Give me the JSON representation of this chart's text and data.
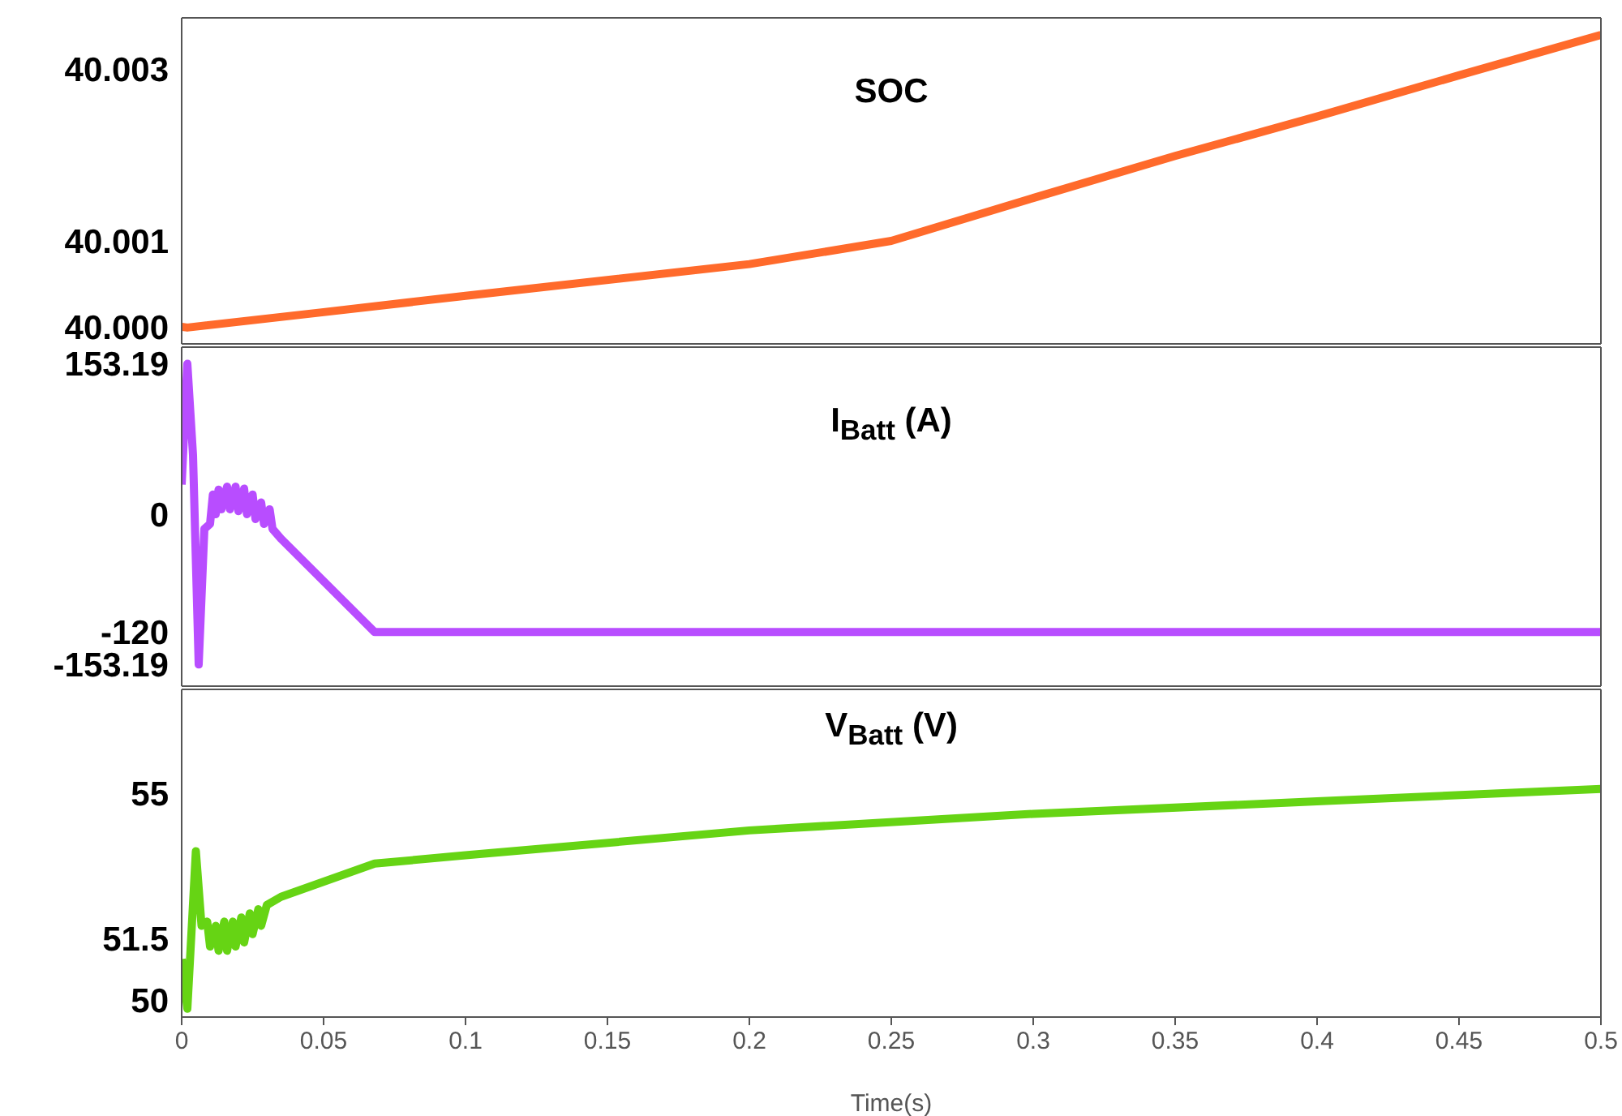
{
  "chart_data": [
    {
      "type": "line",
      "title": "SOC",
      "ylim": [
        39.9998,
        40.0036
      ],
      "yticks": [
        {
          "value": 40.0,
          "label": "40.000"
        },
        {
          "value": 40.001,
          "label": "40.001"
        },
        {
          "value": 40.003,
          "label": "40.003"
        }
      ],
      "xlim": [
        0,
        0.5
      ],
      "xticks": [
        0,
        0.05,
        0.1,
        0.15,
        0.2,
        0.25,
        0.3,
        0.35,
        0.4,
        0.45,
        0.5
      ],
      "tick_labels": "y",
      "grid": false,
      "marker": "none",
      "line_style": "solid",
      "x": [
        0,
        0.002,
        0.05,
        0.1,
        0.2,
        0.25,
        0.3,
        0.35,
        0.4,
        0.45,
        0.5
      ],
      "series": [
        {
          "color": "#ff6a2b",
          "values": [
            40.0,
            39.99999,
            40.00017,
            40.00036,
            40.00073,
            40.001,
            40.0015,
            40.00199,
            40.00245,
            40.00293,
            40.0034
          ]
        }
      ]
    },
    {
      "type": "line",
      "title": "I$_{Batt}$ (A)",
      "ylim": [
        -175,
        170
      ],
      "yticks": [
        153.19,
        0,
        -120,
        -153.19
      ],
      "xlim": [
        0,
        0.5
      ],
      "xticks": [
        0,
        0.05,
        0.1,
        0.15,
        0.2,
        0.25,
        0.3,
        0.35,
        0.4,
        0.45,
        0.5
      ],
      "tick_labels": "y",
      "grid": false,
      "marker": "none",
      "line_style": "solid",
      "x": [
        0,
        0.002,
        0.004,
        0.006,
        0.008,
        0.01,
        0.011,
        0.012,
        0.013,
        0.014,
        0.016,
        0.017,
        0.019,
        0.02,
        0.022,
        0.023,
        0.025,
        0.026,
        0.028,
        0.029,
        0.031,
        0.032,
        0.035,
        0.068,
        0.5
      ],
      "series": [
        {
          "color": "#b84dff",
          "values": [
            30,
            153,
            60,
            -153,
            -15,
            -10,
            20,
            0,
            25,
            5,
            28,
            5,
            28,
            3,
            26,
            0,
            20,
            -5,
            12,
            -10,
            5,
            -15,
            -25,
            -120,
            -120
          ]
        }
      ]
    },
    {
      "type": "line",
      "title": "V$_{Batt}$ (V)",
      "xlabel": "Time(s)",
      "ylim": [
        49.6,
        57.5
      ],
      "yticks": [
        55,
        51.5,
        50
      ],
      "xlim": [
        0,
        0.5
      ],
      "xticks": [
        0,
        0.05,
        0.1,
        0.15,
        0.2,
        0.25,
        0.3,
        0.35,
        0.4,
        0.45,
        0.5
      ],
      "grid": false,
      "marker": "none",
      "line_style": "solid",
      "x": [
        0,
        0.002,
        0.005,
        0.007,
        0.009,
        0.01,
        0.012,
        0.013,
        0.015,
        0.016,
        0.018,
        0.019,
        0.021,
        0.022,
        0.024,
        0.025,
        0.027,
        0.028,
        0.03,
        0.035,
        0.068,
        0.1,
        0.2,
        0.3,
        0.4,
        0.5
      ],
      "series": [
        {
          "color": "#66d414",
          "values": [
            51.0,
            49.8,
            53.6,
            51.8,
            51.9,
            51.3,
            51.8,
            51.2,
            51.9,
            51.2,
            51.9,
            51.3,
            52.0,
            51.4,
            52.1,
            51.6,
            52.2,
            51.8,
            52.3,
            52.5,
            53.3,
            53.5,
            54.1,
            54.5,
            54.8,
            55.1
          ]
        }
      ]
    }
  ]
}
